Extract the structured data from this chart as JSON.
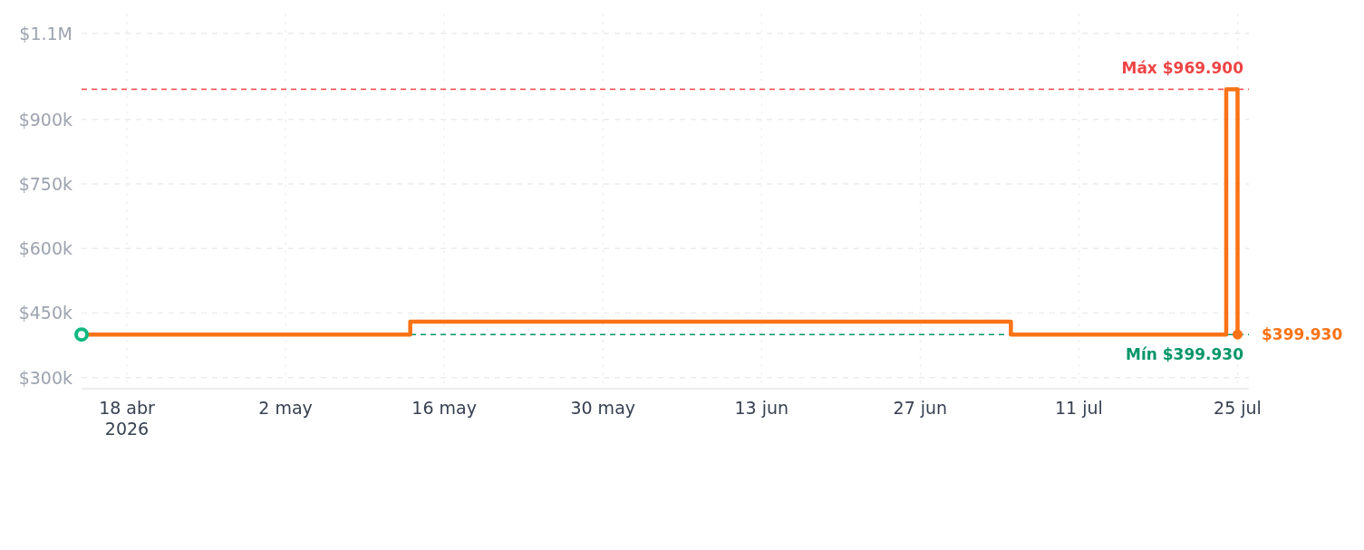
{
  "chart_data": {
    "type": "step",
    "x": [
      "2026-04-14",
      "2026-05-13",
      "2026-07-05",
      "2026-07-24",
      "2026-07-25"
    ],
    "series": [
      {
        "color": "#f97316",
        "values": [
          399930,
          429900,
          399930,
          969900,
          399930
        ]
      },
      {
        "type": "scatter",
        "color": "#10b981",
        "x": [
          "2026-04-14"
        ],
        "values": [
          399930
        ],
        "marker": "circle"
      }
    ],
    "xlim": [
      "2026-04-14",
      "2026-07-26"
    ],
    "xticks": [
      {
        "value": "2026-04-18",
        "label": "18 abr\n2026"
      },
      {
        "value": "2026-05-02",
        "label": "2 may"
      },
      {
        "value": "2026-05-16",
        "label": "16 may"
      },
      {
        "value": "2026-05-30",
        "label": "30 may"
      },
      {
        "value": "2026-06-13",
        "label": "13 jun"
      },
      {
        "value": "2026-06-27",
        "label": "27 jun"
      },
      {
        "value": "2026-07-11",
        "label": "11 jul"
      },
      {
        "value": "2026-07-25",
        "label": "25 jul"
      }
    ],
    "ylim": [
      274000,
      1146000
    ],
    "yticks": [
      {
        "value": 300000,
        "label": "$300k"
      },
      {
        "value": 450000,
        "label": "$450k"
      },
      {
        "value": 600000,
        "label": "$600k"
      },
      {
        "value": 750000,
        "label": "$750k"
      },
      {
        "value": 900000,
        "label": "$900k"
      },
      {
        "value": 1100000,
        "label": "$1.1M"
      }
    ],
    "ref_lines": [
      {
        "axis": "y",
        "value": 969900,
        "label": "Máx $969.900",
        "color": "#ef4444",
        "line_style": "dashed"
      },
      {
        "axis": "y",
        "value": 399930,
        "label": "Mín $399.930",
        "color": "#059669",
        "line_style": "dashed"
      }
    ],
    "annotations": [
      {
        "text": "$399.930",
        "x": "2026-07-25",
        "y": 399930
      }
    ],
    "grid": true,
    "marker": "none",
    "line_style": "solid"
  }
}
